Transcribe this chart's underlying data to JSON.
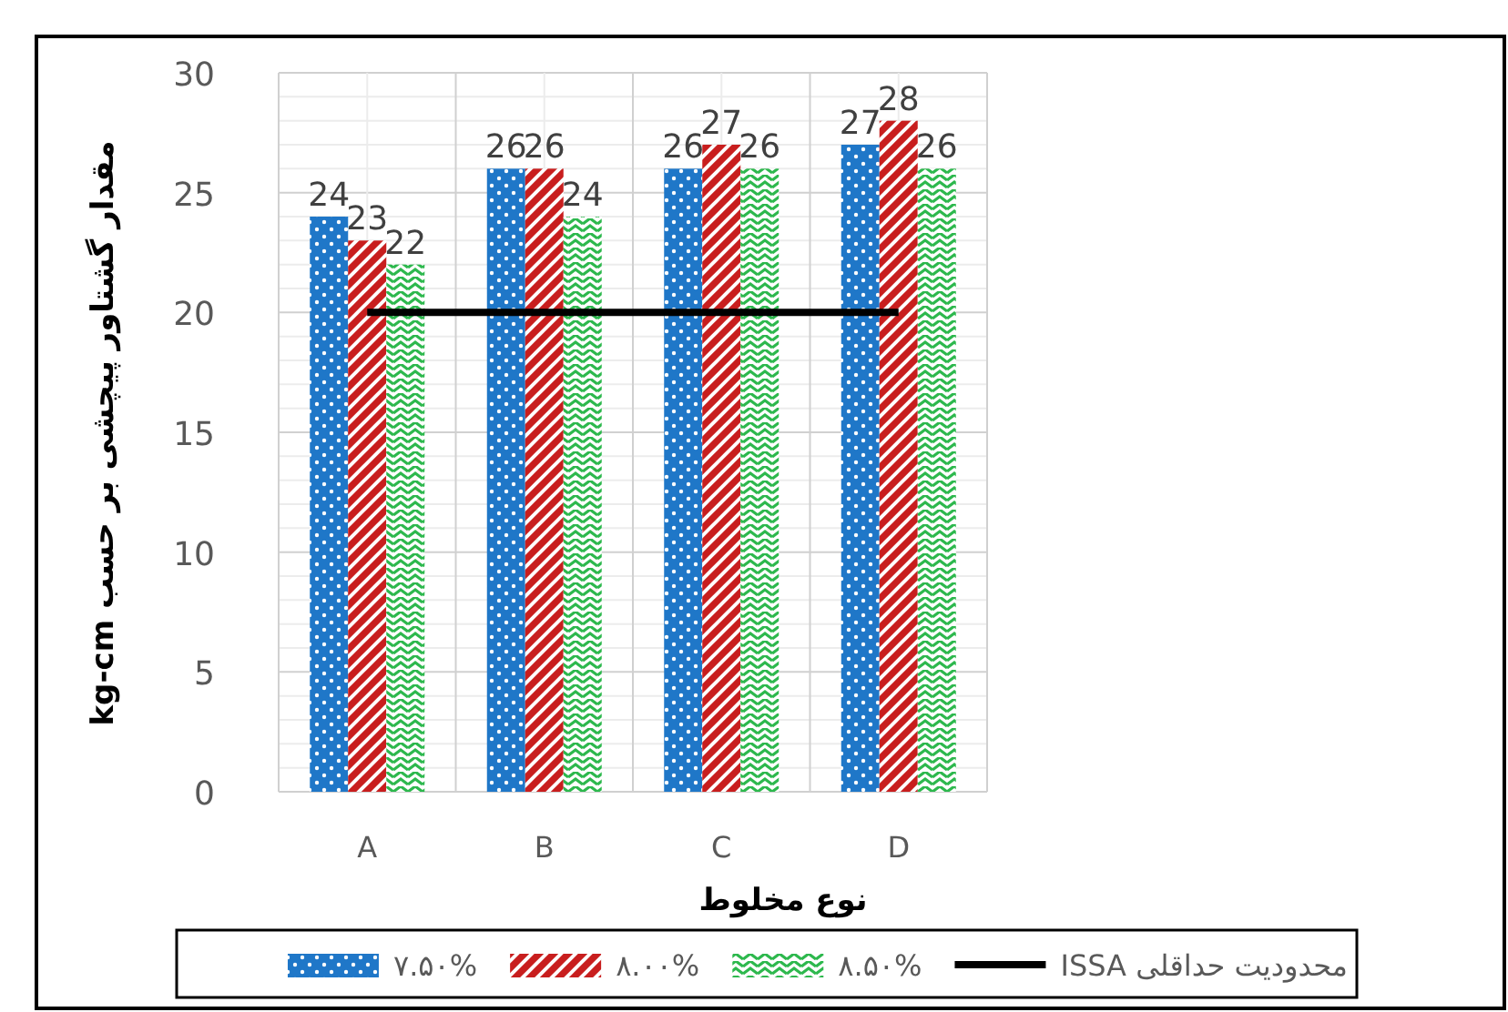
{
  "chart_data": {
    "type": "bar",
    "xlabel": "نوع مخلوط",
    "ylabel": "مقدار گشتاور پیچشی بر حسب kg-cm",
    "categories": [
      "A",
      "B",
      "C",
      "D"
    ],
    "series": [
      {
        "name": "۷.۵۰%",
        "color": "#1f77c8",
        "values": [
          24,
          26,
          26,
          27
        ],
        "value_labels": [
          "24",
          "26",
          "26",
          "27"
        ]
      },
      {
        "name": "۸.۰۰%",
        "color": "#c81e1e",
        "values": [
          23,
          26,
          27,
          28
        ],
        "value_labels": [
          "23",
          "26",
          "27",
          "28"
        ]
      },
      {
        "name": "۸.۵۰%",
        "color": "#2db84d",
        "values": [
          22,
          24,
          26,
          26
        ],
        "value_labels": [
          "22",
          "24",
          "26",
          "26"
        ]
      },
      {
        "name": "محدودیت حداقلی ISSA",
        "type": "line",
        "color": "#000000",
        "values": [
          20,
          20,
          20,
          20
        ]
      }
    ],
    "ylim": [
      0,
      30
    ],
    "yticks": [
      0,
      5,
      10,
      15,
      20,
      25,
      30
    ],
    "grid": true,
    "legend": "bottom"
  }
}
